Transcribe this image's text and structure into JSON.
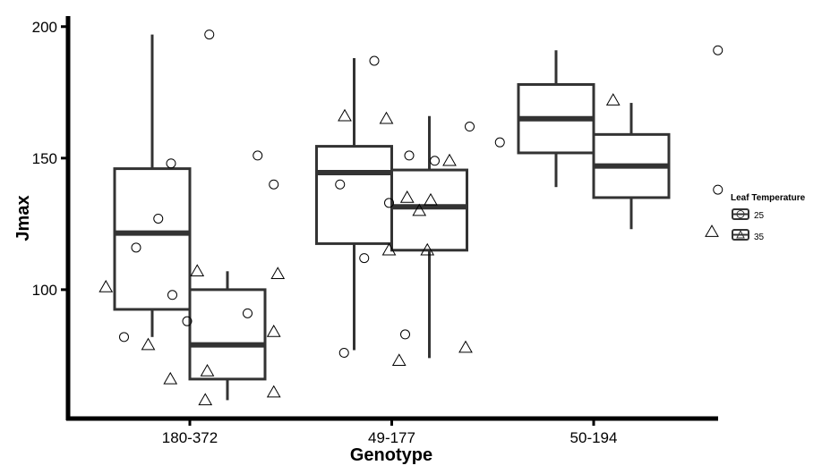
{
  "chart_data": {
    "type": "boxplot",
    "xlabel": "Genotype",
    "ylabel": "Jmax",
    "categories": [
      "180-372",
      "49-177",
      "50-194"
    ],
    "y_ticks": [
      100,
      150,
      200
    ],
    "ylim": [
      51,
      204
    ],
    "legend": {
      "title": "Leaf Temperature",
      "placement": "right",
      "entries": [
        "25",
        "35"
      ]
    },
    "colors": {
      "line": "#333333",
      "median": "#333333",
      "axis": "#000000",
      "background": "#ffffff"
    },
    "boxes": [
      {
        "category": "180-372",
        "group": "25",
        "whisker_low": 82,
        "q1": 92.5,
        "median": 121.5,
        "q3": 146,
        "whisker_high": 197
      },
      {
        "category": "180-372",
        "group": "35",
        "whisker_low": 58,
        "q1": 66,
        "median": 79,
        "q3": 100,
        "whisker_high": 107
      },
      {
        "category": "49-177",
        "group": "25",
        "whisker_low": 77,
        "q1": 117.5,
        "median": 144.5,
        "q3": 154.5,
        "whisker_high": 188
      },
      {
        "category": "49-177",
        "group": "35",
        "whisker_low": 74,
        "q1": 115,
        "median": 131.5,
        "q3": 145.5,
        "whisker_high": 166
      },
      {
        "category": "50-194",
        "group": "25",
        "whisker_low": 139,
        "q1": 152,
        "median": 165,
        "q3": 178,
        "whisker_high": 191
      },
      {
        "category": "50-194",
        "group": "35",
        "whisker_low": 123,
        "q1": 135,
        "median": 147,
        "q3": 159,
        "whisker_high": 171
      }
    ],
    "points": [
      {
        "category": "180-372",
        "group": "25",
        "shape": "circle",
        "offset": -0.08,
        "y": 116
      },
      {
        "category": "180-372",
        "group": "25",
        "shape": "circle",
        "offset": 0.03,
        "y": 127
      },
      {
        "category": "180-372",
        "group": "25",
        "shape": "circle",
        "offset": 0.1,
        "y": 98
      },
      {
        "category": "180-372",
        "group": "25",
        "shape": "circle",
        "offset": -0.14,
        "y": 82
      },
      {
        "category": "180-372",
        "group": "25",
        "shape": "triangle",
        "offset": -0.23,
        "y": 101
      },
      {
        "category": "180-372",
        "group": "25",
        "shape": "triangle",
        "offset": -0.02,
        "y": 79
      },
      {
        "category": "180-372",
        "group": "25",
        "shape": "triangle",
        "offset": 0.09,
        "y": 66
      },
      {
        "category": "180-372",
        "group": "35",
        "shape": "circle",
        "offset": -0.28,
        "y": 148
      },
      {
        "category": "180-372",
        "group": "35",
        "shape": "circle",
        "offset": -0.09,
        "y": 197
      },
      {
        "category": "180-372",
        "group": "35",
        "shape": "circle",
        "offset": 0.15,
        "y": 151
      },
      {
        "category": "180-372",
        "group": "35",
        "shape": "circle",
        "offset": 0.23,
        "y": 140
      },
      {
        "category": "180-372",
        "group": "35",
        "shape": "circle",
        "offset": -0.2,
        "y": 88
      },
      {
        "category": "180-372",
        "group": "35",
        "shape": "circle",
        "offset": 0.1,
        "y": 91
      },
      {
        "category": "180-372",
        "group": "35",
        "shape": "triangle",
        "offset": -0.15,
        "y": 107
      },
      {
        "category": "180-372",
        "group": "35",
        "shape": "triangle",
        "offset": 0.25,
        "y": 106
      },
      {
        "category": "180-372",
        "group": "35",
        "shape": "triangle",
        "offset": 0.23,
        "y": 84
      },
      {
        "category": "180-372",
        "group": "35",
        "shape": "triangle",
        "offset": -0.1,
        "y": 69
      },
      {
        "category": "180-372",
        "group": "35",
        "shape": "triangle",
        "offset": 0.23,
        "y": 61
      },
      {
        "category": "180-372",
        "group": "35",
        "shape": "triangle",
        "offset": -0.11,
        "y": 58
      },
      {
        "category": "49-177",
        "group": "25",
        "shape": "circle",
        "offset": 0.1,
        "y": 187
      },
      {
        "category": "49-177",
        "group": "25",
        "shape": "circle",
        "offset": -0.07,
        "y": 140
      },
      {
        "category": "49-177",
        "group": "25",
        "shape": "circle",
        "offset": 0.05,
        "y": 112
      },
      {
        "category": "49-177",
        "group": "25",
        "shape": "circle",
        "offset": -0.05,
        "y": 76
      },
      {
        "category": "49-177",
        "group": "25",
        "shape": "circle",
        "offset": 0.4,
        "y": 149
      },
      {
        "category": "49-177",
        "group": "25",
        "shape": "triangle",
        "offset": 0.16,
        "y": 165
      },
      {
        "category": "49-177",
        "group": "25",
        "shape": "triangle",
        "offset": 0.38,
        "y": 134
      },
      {
        "category": "49-177",
        "group": "35",
        "shape": "circle",
        "offset": -0.2,
        "y": 133
      },
      {
        "category": "49-177",
        "group": "35",
        "shape": "circle",
        "offset": -0.1,
        "y": 151
      },
      {
        "category": "49-177",
        "group": "35",
        "shape": "circle",
        "offset": 0.2,
        "y": 162
      },
      {
        "category": "49-177",
        "group": "35",
        "shape": "circle",
        "offset": 0.35,
        "y": 156
      },
      {
        "category": "49-177",
        "group": "35",
        "shape": "circle",
        "offset": -0.12,
        "y": 83
      },
      {
        "category": "49-177",
        "group": "35",
        "shape": "triangle",
        "offset": -0.42,
        "y": 166
      },
      {
        "category": "49-177",
        "group": "35",
        "shape": "triangle",
        "offset": 0.1,
        "y": 149
      },
      {
        "category": "49-177",
        "group": "35",
        "shape": "triangle",
        "offset": -0.11,
        "y": 135
      },
      {
        "category": "49-177",
        "group": "35",
        "shape": "triangle",
        "offset": -0.05,
        "y": 130
      },
      {
        "category": "49-177",
        "group": "35",
        "shape": "triangle",
        "offset": -0.2,
        "y": 115
      },
      {
        "category": "49-177",
        "group": "35",
        "shape": "triangle",
        "offset": -0.01,
        "y": 115
      },
      {
        "category": "49-177",
        "group": "35",
        "shape": "triangle",
        "offset": 0.18,
        "y": 78
      },
      {
        "category": "49-177",
        "group": "35",
        "shape": "triangle",
        "offset": -0.15,
        "y": 73
      },
      {
        "category": "50-194",
        "group": "35",
        "shape": "circle",
        "offset": 0.43,
        "y": 191
      },
      {
        "category": "50-194",
        "group": "35",
        "shape": "circle",
        "offset": 0.43,
        "y": 138
      },
      {
        "category": "50-194",
        "group": "35",
        "shape": "triangle",
        "offset": -0.09,
        "y": 172
      },
      {
        "category": "50-194",
        "group": "35",
        "shape": "triangle",
        "offset": 0.4,
        "y": 122
      }
    ]
  }
}
